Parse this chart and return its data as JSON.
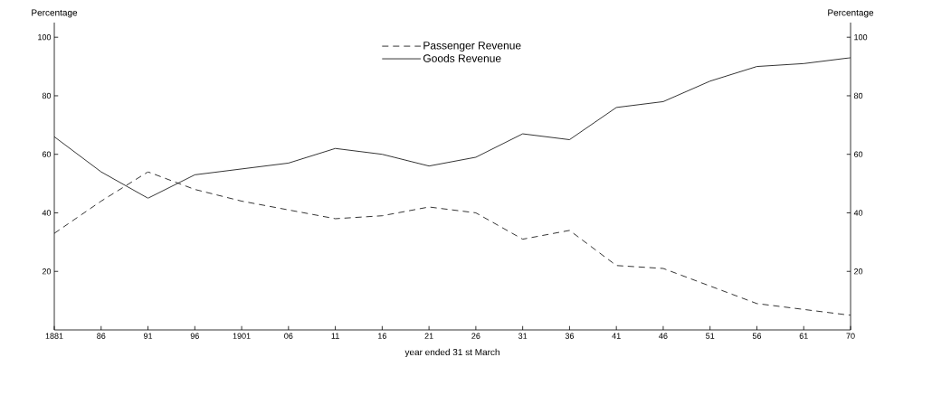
{
  "chart_data": {
    "type": "line",
    "xlabel": "year ended 31 st March",
    "ylabel": "Percentage",
    "y2label": "Percentage",
    "categories": [
      "1881",
      "86",
      "91",
      "96",
      "1901",
      "06",
      "11",
      "16",
      "21",
      "26",
      "31",
      "36",
      "41",
      "46",
      "51",
      "56",
      "61",
      "70"
    ],
    "series": [
      {
        "name": "Passenger Revenue",
        "color": "#000000",
        "line_style": "dashed",
        "values": [
          33,
          44,
          54,
          48,
          44,
          41,
          38,
          39,
          42,
          40,
          31,
          34,
          22,
          21,
          15,
          9,
          7,
          5
        ]
      },
      {
        "name": "Goods Revenue",
        "color": "#000000",
        "line_style": "solid",
        "values": [
          66,
          54,
          45,
          53,
          55,
          57,
          62,
          60,
          56,
          59,
          67,
          65,
          76,
          78,
          85,
          90,
          91,
          93
        ]
      }
    ],
    "ylim": [
      0,
      105
    ],
    "yticks": [
      20,
      40,
      60,
      80,
      100
    ],
    "y2lim": [
      0,
      105
    ],
    "y2ticks": [
      20,
      40,
      60,
      80,
      100
    ],
    "legend": "top",
    "grid": false,
    "marker": "none"
  }
}
